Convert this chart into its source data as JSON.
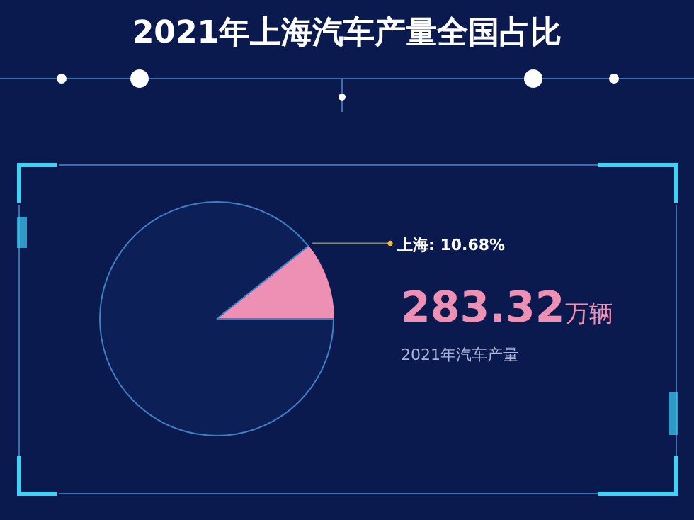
{
  "chart_data": {
    "type": "pie",
    "title": "2021年上海汽车产量全国占比",
    "categories": [
      "上海",
      null
    ],
    "values": [
      10.68,
      89.32
    ],
    "colors": [
      "#ee8fb4",
      "#0c1f57"
    ],
    "value_labels": [
      "10.68%",
      null
    ],
    "annotations": [
      "283.32万辆",
      "2021年汽车产量"
    ],
    "legend": false
  }
}
